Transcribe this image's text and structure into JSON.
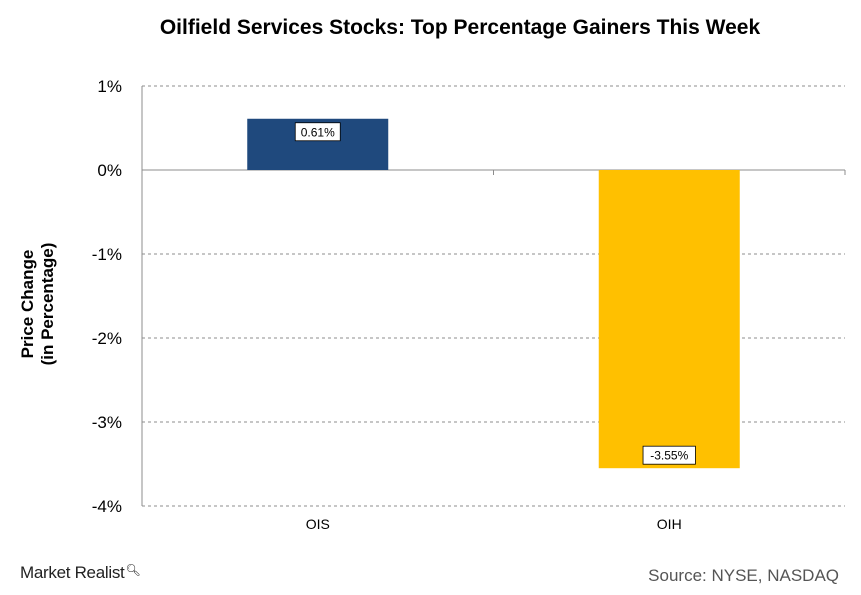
{
  "chart_data": {
    "type": "bar",
    "title": "Oilfield Services Stocks: Top Percentage Gainers This Week",
    "ylabel_line1": "Price Change",
    "ylabel_line2": "(in Percentage)",
    "xlabel": "",
    "categories": [
      "OIS",
      "OIH"
    ],
    "values": [
      0.61,
      -3.55
    ],
    "data_labels": [
      "0.61%",
      "-3.55%"
    ],
    "ylim": [
      -4,
      1
    ],
    "yticks": [
      1,
      0,
      -1,
      -2,
      -3,
      -4
    ],
    "ytick_labels": [
      "1%",
      "0%",
      "-1%",
      "-2%",
      "-3%",
      "-4%"
    ],
    "bar_colors": [
      "#1F497D",
      "#FFC000"
    ],
    "grid": true,
    "legend": "none"
  },
  "branding": {
    "logo_text": "Market Realist",
    "logo_icon": "magnifier-icon",
    "source_text": "Source:  NYSE, NASDAQ"
  }
}
